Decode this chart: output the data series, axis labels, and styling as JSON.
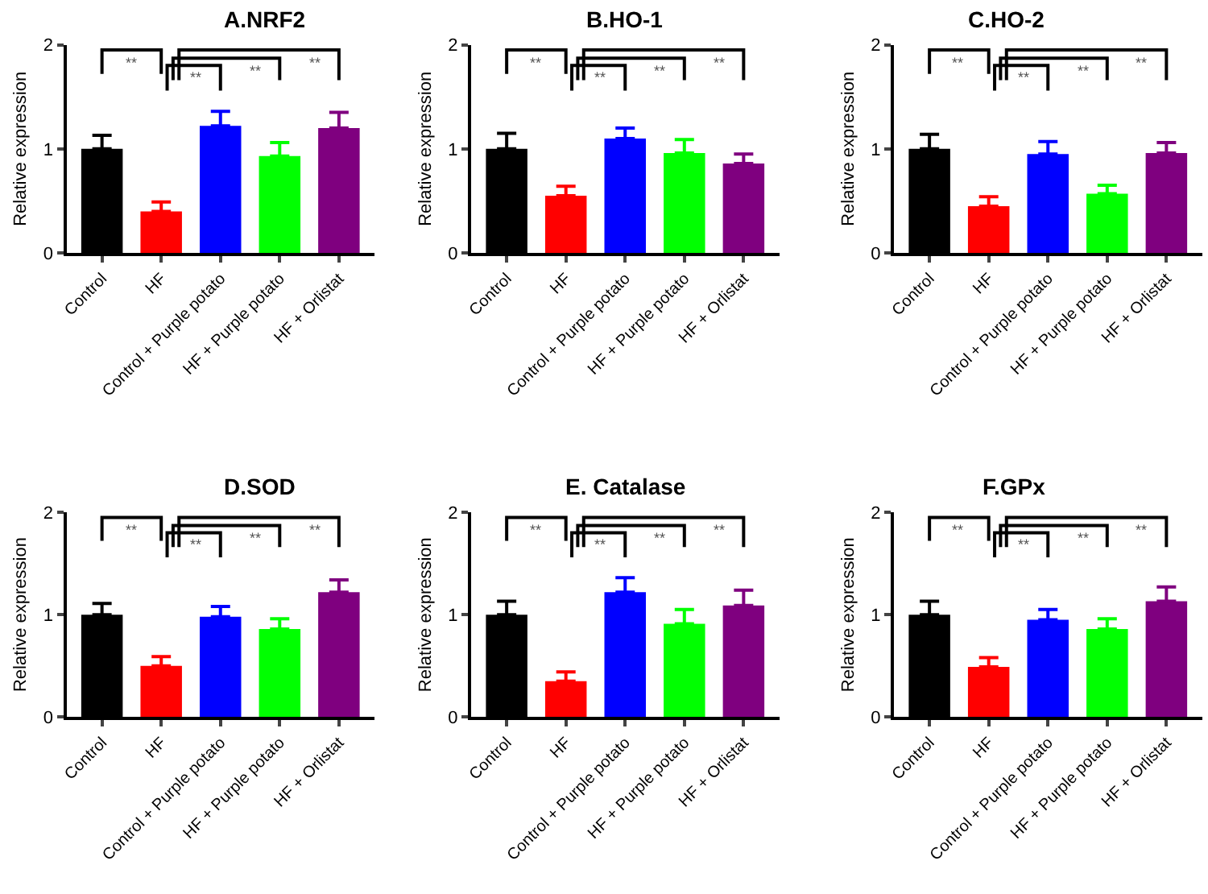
{
  "chart_data": [
    {
      "type": "bar",
      "title": "A.NRF2",
      "ylabel": "Relative expression",
      "categories": [
        "Control",
        "HF",
        "Control + Purple potato",
        "HF + Purple potato",
        "HF + Orlistat"
      ],
      "values": [
        1.0,
        0.4,
        1.22,
        0.93,
        1.2
      ],
      "colors": [
        "#000000",
        "#ff0000",
        "#0000ff",
        "#00ff00",
        "#7f007f"
      ],
      "errors": [
        [
          1.0,
          1.13
        ],
        [
          0.4,
          0.49
        ],
        [
          1.22,
          1.36
        ],
        [
          0.93,
          1.06
        ],
        [
          1.2,
          1.35
        ]
      ],
      "ylim": [
        0,
        2
      ],
      "yticks": [
        0,
        1,
        2
      ],
      "annotations": [
        "**",
        "**",
        "**",
        "**"
      ]
    },
    {
      "type": "bar",
      "title": "B.HO-1",
      "ylabel": "Relative expression",
      "categories": [
        "Control",
        "HF",
        "Control + Purple potato",
        "HF + Purple potato",
        "HF + Orlistat"
      ],
      "values": [
        1.0,
        0.55,
        1.1,
        0.96,
        0.86
      ],
      "colors": [
        "#000000",
        "#ff0000",
        "#0000ff",
        "#00ff00",
        "#7f007f"
      ],
      "errors": [
        [
          1.0,
          1.15
        ],
        [
          0.55,
          0.64
        ],
        [
          1.1,
          1.2
        ],
        [
          0.96,
          1.09
        ],
        [
          0.86,
          0.95
        ]
      ],
      "ylim": [
        0,
        2
      ],
      "yticks": [
        0,
        1,
        2
      ],
      "annotations": [
        "**",
        "**",
        "**",
        "**"
      ]
    },
    {
      "type": "bar",
      "title": "C.HO-2",
      "ylabel": "Relative expression",
      "categories": [
        "Control",
        "HF",
        "Control + Purple potato",
        "HF + Purple potato",
        "HF + Orlistat"
      ],
      "values": [
        1.0,
        0.45,
        0.95,
        0.57,
        0.96
      ],
      "colors": [
        "#000000",
        "#ff0000",
        "#0000ff",
        "#00ff00",
        "#7f007f"
      ],
      "errors": [
        [
          1.0,
          1.14
        ],
        [
          0.45,
          0.54
        ],
        [
          0.95,
          1.07
        ],
        [
          0.57,
          0.65
        ],
        [
          0.96,
          1.06
        ]
      ],
      "ylim": [
        0,
        2
      ],
      "yticks": [
        0,
        1,
        2
      ],
      "annotations": [
        "**",
        "**",
        "**",
        "**"
      ]
    },
    {
      "type": "bar",
      "title": "D.SOD",
      "ylabel": "Relative expression",
      "categories": [
        "Control",
        "HF",
        "Control + Purple potato",
        "HF + Purple potato",
        "HF + Orlistat"
      ],
      "values": [
        1.0,
        0.5,
        0.98,
        0.86,
        1.22
      ],
      "colors": [
        "#000000",
        "#ff0000",
        "#0000ff",
        "#00ff00",
        "#7f007f"
      ],
      "errors": [
        [
          1.0,
          1.11
        ],
        [
          0.5,
          0.59
        ],
        [
          0.98,
          1.08
        ],
        [
          0.86,
          0.96
        ],
        [
          1.22,
          1.34
        ]
      ],
      "ylim": [
        0,
        2
      ],
      "yticks": [
        0,
        1,
        2
      ],
      "annotations": [
        "**",
        "**",
        "**",
        "**"
      ]
    },
    {
      "type": "bar",
      "title": "E. Catalase",
      "ylabel": "Relative expression",
      "categories": [
        "Control",
        "HF",
        "Control + Purple potato",
        "HF + Purple potato",
        "HF + Orlistat"
      ],
      "values": [
        1.0,
        0.35,
        1.22,
        0.91,
        1.09
      ],
      "colors": [
        "#000000",
        "#ff0000",
        "#0000ff",
        "#00ff00",
        "#7f007f"
      ],
      "errors": [
        [
          1.0,
          1.13
        ],
        [
          0.35,
          0.44
        ],
        [
          1.22,
          1.36
        ],
        [
          0.91,
          1.05
        ],
        [
          1.09,
          1.24
        ]
      ],
      "ylim": [
        0,
        2
      ],
      "yticks": [
        0,
        1,
        2
      ],
      "annotations": [
        "**",
        "**",
        "**",
        "**"
      ]
    },
    {
      "type": "bar",
      "title": "F.GPx",
      "ylabel": "Relative expression",
      "categories": [
        "Control",
        "HF",
        "Control + Purple potato",
        "HF + Purple potato",
        "HF + Orlistat"
      ],
      "values": [
        1.0,
        0.49,
        0.95,
        0.86,
        1.13
      ],
      "colors": [
        "#000000",
        "#ff0000",
        "#0000ff",
        "#00ff00",
        "#7f007f"
      ],
      "errors": [
        [
          1.0,
          1.13
        ],
        [
          0.49,
          0.58
        ],
        [
          0.95,
          1.05
        ],
        [
          0.86,
          0.96
        ],
        [
          1.13,
          1.27
        ]
      ],
      "ylim": [
        0,
        2
      ],
      "yticks": [
        0,
        1,
        2
      ],
      "annotations": [
        "**",
        "**",
        "**",
        "**"
      ]
    }
  ]
}
